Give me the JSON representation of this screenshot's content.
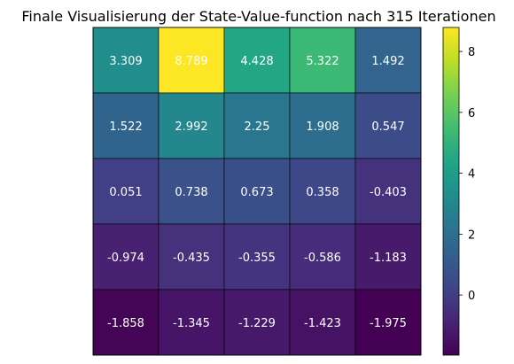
{
  "chart_data": {
    "type": "heatmap",
    "title": "Finale Visualisierung der State-Value-function nach 315 Iterationen",
    "rows": 5,
    "cols": 5,
    "values": [
      [
        3.309,
        8.789,
        4.428,
        5.322,
        1.492
      ],
      [
        1.522,
        2.992,
        2.25,
        1.908,
        0.547
      ],
      [
        0.051,
        0.738,
        0.673,
        0.358,
        -0.403
      ],
      [
        -0.974,
        -0.435,
        -0.355,
        -0.586,
        -1.183
      ],
      [
        -1.858,
        -1.345,
        -1.229,
        -1.423,
        -1.975
      ]
    ],
    "labels": [
      [
        "3.309",
        "8.789",
        "4.428",
        "5.322",
        "1.492"
      ],
      [
        "1.522",
        "2.992",
        "2.25",
        "1.908",
        "0.547"
      ],
      [
        "0.051",
        "0.738",
        "0.673",
        "0.358",
        "-0.403"
      ],
      [
        "-0.974",
        "-0.435",
        "-0.355",
        "-0.586",
        "-1.183"
      ],
      [
        "-1.858",
        "-1.345",
        "-1.229",
        "-1.423",
        "-1.975"
      ]
    ],
    "colormap": "viridis",
    "vmin": -1.975,
    "vmax": 8.789,
    "colorbar_ticks": [
      0,
      2,
      4,
      6,
      8
    ],
    "colorbar_tick_labels": [
      "0",
      "2",
      "4",
      "6",
      "8"
    ],
    "grid_line_color": "#000000",
    "axes_ticks_visible": false
  }
}
